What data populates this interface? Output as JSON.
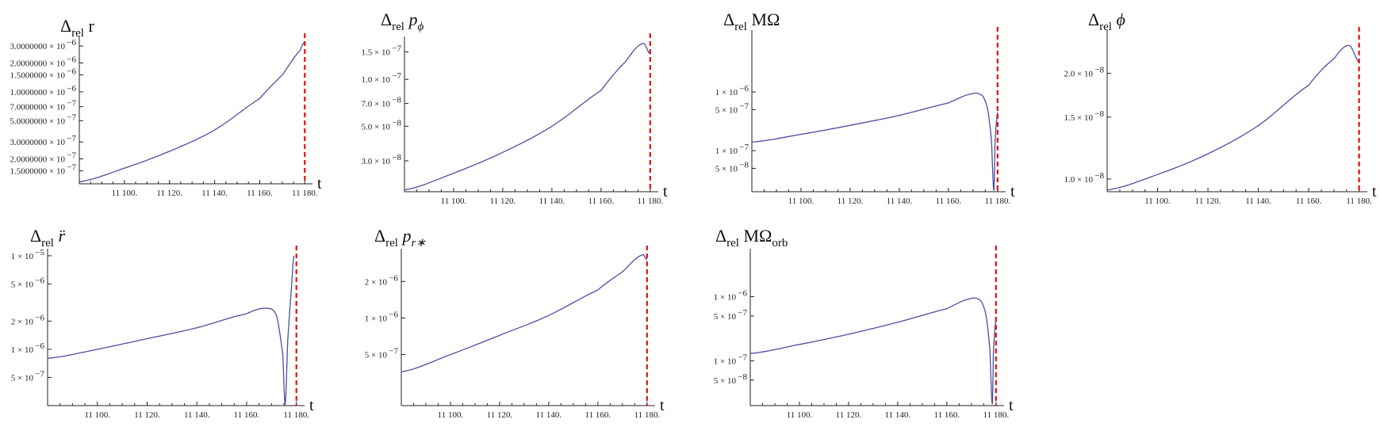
{
  "colors": {
    "curve": "#4b4f9c",
    "vline": "#e01010",
    "axis": "#222222"
  },
  "chart_data": [
    {
      "type": "line",
      "scale_y": "log",
      "title_main": "Δ",
      "title_sub": "rel",
      "title_tail": " r",
      "xlabel": "t",
      "x_ticks": [
        "11 100.",
        "11 120.",
        "11 140.",
        "11 160.",
        "11 180."
      ],
      "y_ticks": [
        "3.0000000 × 10",
        "2.0000000 × 10",
        "1.5000000 × 10",
        "1.0000000 × 10",
        "7.0000000 × 10",
        "5.0000000 × 10",
        "3.0000000 × 10",
        "2.0000000 × 10",
        "1.5000000 × 10"
      ],
      "y_ticks_exp": [
        "−6",
        "−6",
        "−6",
        "−6",
        "−7",
        "−7",
        "−7",
        "−7",
        "−7"
      ],
      "y_tick_values": [
        3e-06,
        2e-06,
        1.5e-06,
        1e-06,
        7e-07,
        5e-07,
        3e-07,
        2e-07,
        1.5e-07
      ],
      "xlim": [
        11080,
        11182
      ],
      "ylim": [
        1.1e-07,
        3.5e-06
      ],
      "vline_x": 11180,
      "x": [
        11080,
        11100,
        11120,
        11140,
        11160,
        11170,
        11178,
        11180
      ],
      "y": [
        1.15e-07,
        1.6e-07,
        2.4e-07,
        4e-07,
        8.5e-07,
        1.5e-06,
        2.7e-06,
        3.3e-06
      ]
    },
    {
      "type": "line",
      "scale_y": "log",
      "title_main": "Δ",
      "title_sub": "rel",
      "title_tail": " p",
      "title_tail_sub": "ϕ",
      "xlabel": "t",
      "x_ticks": [
        "11 100.",
        "11 120.",
        "11 140.",
        "11 160.",
        "11 180."
      ],
      "y_ticks": [
        "1.5 × 10",
        "1.0 × 10",
        "7.0 × 10",
        "5.0 × 10",
        "3.0 × 10"
      ],
      "y_ticks_exp": [
        "−7",
        "−7",
        "−8",
        "−8",
        "−8"
      ],
      "y_tick_values": [
        1.5e-07,
        1e-07,
        7e-08,
        5e-08,
        3e-08
      ],
      "xlim": [
        11080,
        11182
      ],
      "ylim": [
        1.9e-08,
        1.8e-07
      ],
      "vline_x": 11180,
      "x": [
        11080,
        11100,
        11120,
        11140,
        11160,
        11170,
        11177,
        11180
      ],
      "y": [
        1.95e-08,
        2.5e-08,
        3.4e-08,
        5e-08,
        8.5e-08,
        1.3e-07,
        1.7e-07,
        1.45e-07
      ]
    },
    {
      "type": "line",
      "scale_y": "log",
      "title_main": "Δ",
      "title_sub": "rel",
      "title_tail": " MΩ",
      "xlabel": "t",
      "x_ticks": [
        "11 100.",
        "11 120.",
        "11 140.",
        "11 160.",
        "11 180."
      ],
      "y_ticks": [
        "1 × 10",
        "5 × 10",
        "1 × 10",
        "5 × 10"
      ],
      "y_ticks_exp": [
        "−6",
        "−7",
        "−7",
        "−8"
      ],
      "y_tick_values": [
        1e-06,
        5e-07,
        1e-07,
        5e-08
      ],
      "xlim": [
        11080,
        11182
      ],
      "ylim": [
        2e-08,
        1e-05
      ],
      "vline_x": 11180,
      "x": [
        11080,
        11100,
        11120,
        11140,
        11160,
        11170,
        11174,
        11176,
        11177.5,
        11178.5,
        11179,
        11180
      ],
      "y": [
        1.4e-07,
        1.9e-07,
        2.7e-07,
        4e-07,
        6.5e-07,
        9.4e-07,
        8.5e-07,
        5e-07,
        1.5e-07,
        2.1e-08,
        1.5e-07,
        4.5e-07
      ]
    },
    {
      "type": "line",
      "scale_y": "log",
      "title_main": "Δ",
      "title_sub": "rel",
      "title_tail": " ϕ",
      "xlabel": "t",
      "x_ticks": [
        "11 100.",
        "11 120.",
        "11 140.",
        "11 160.",
        "11 180."
      ],
      "y_ticks": [
        "2.0 × 10",
        "1.5 × 10",
        "1.0 × 10"
      ],
      "y_ticks_exp": [
        "−8",
        "−8",
        "−8"
      ],
      "y_tick_values": [
        2e-08,
        1.5e-08,
        1e-08
      ],
      "xlim": [
        11080,
        11182
      ],
      "ylim": [
        9.2e-09,
        2.6e-08
      ],
      "vline_x": 11180,
      "x": [
        11080,
        11100,
        11120,
        11140,
        11160,
        11170,
        11176,
        11180
      ],
      "y": [
        9.3e-09,
        1.03e-08,
        1.18e-08,
        1.42e-08,
        1.85e-08,
        2.2e-08,
        2.4e-08,
        2.15e-08
      ]
    },
    {
      "type": "line",
      "scale_y": "log",
      "title_main": "Δ",
      "title_sub": "rel",
      "title_tail": " r̈",
      "xlabel": "t",
      "x_ticks": [
        "11 100.",
        "11 120.",
        "11 140.",
        "11 160.",
        "11 180."
      ],
      "y_ticks": [
        "1 × 10",
        "5 × 10",
        "2 × 10",
        "1 × 10",
        "5 × 10"
      ],
      "y_ticks_exp": [
        "−5",
        "−6",
        "−6",
        "−6",
        "−7"
      ],
      "y_tick_values": [
        1e-05,
        5e-06,
        2e-06,
        1e-06,
        5e-07
      ],
      "xlim": [
        11080,
        11182
      ],
      "ylim": [
        2.5e-07,
        1.1e-05
      ],
      "vline_x": 11180,
      "x": [
        11080,
        11100,
        11120,
        11140,
        11160,
        11168,
        11172,
        11174.5,
        11175.5,
        11176.5,
        11178,
        11179
      ],
      "y": [
        8e-07,
        1e-06,
        1.3e-06,
        1.7e-06,
        2.4e-06,
        2.75e-06,
        2.3e-06,
        9e-07,
        2.6e-07,
        1.2e-06,
        4.5e-06,
        1e-05
      ]
    },
    {
      "type": "line",
      "scale_y": "log",
      "title_main": "Δ",
      "title_sub": "rel",
      "title_tail": " p",
      "title_tail_sub": "r∗",
      "xlabel": "t",
      "x_ticks": [
        "11 100.",
        "11 120.",
        "11 140.",
        "11 160.",
        "11 180."
      ],
      "y_ticks": [
        "2 × 10",
        "1 × 10",
        "5 × 10"
      ],
      "y_ticks_exp": [
        "−6",
        "−6",
        "−7"
      ],
      "y_tick_values": [
        2e-06,
        1e-06,
        5e-07
      ],
      "xlim": [
        11080,
        11182
      ],
      "ylim": [
        1.9e-07,
        3.5e-06
      ],
      "vline_x": 11180,
      "x": [
        11080,
        11100,
        11120,
        11140,
        11160,
        11170,
        11178,
        11180
      ],
      "y": [
        3.6e-07,
        5e-07,
        7.2e-07,
        1.05e-06,
        1.7e-06,
        2.4e-06,
        3.3e-06,
        3e-06
      ]
    },
    {
      "type": "line",
      "scale_y": "log",
      "title_main": "Δ",
      "title_sub": "rel",
      "title_tail": " MΩ",
      "title_tail_sub": "orb",
      "xlabel": "t",
      "x_ticks": [
        "11 100.",
        "11 120.",
        "11 140.",
        "11 160.",
        "11 180."
      ],
      "y_ticks": [
        "1 × 10",
        "5 × 10",
        "1 × 10",
        "5 × 10"
      ],
      "y_ticks_exp": [
        "−6",
        "−7",
        "−7",
        "−8"
      ],
      "y_tick_values": [
        1e-06,
        5e-07,
        1e-07,
        5e-08
      ],
      "xlim": [
        11080,
        11182
      ],
      "ylim": [
        2e-08,
        5e-06
      ],
      "vline_x": 11180,
      "x": [
        11080,
        11100,
        11120,
        11140,
        11160,
        11170,
        11174,
        11176,
        11177.5,
        11178.5,
        11179,
        11180
      ],
      "y": [
        1.3e-07,
        1.8e-07,
        2.6e-07,
        4e-07,
        6.5e-07,
        9.4e-07,
        8.5e-07,
        5e-07,
        1.5e-07,
        2.1e-08,
        1.5e-07,
        4.5e-07
      ]
    }
  ]
}
